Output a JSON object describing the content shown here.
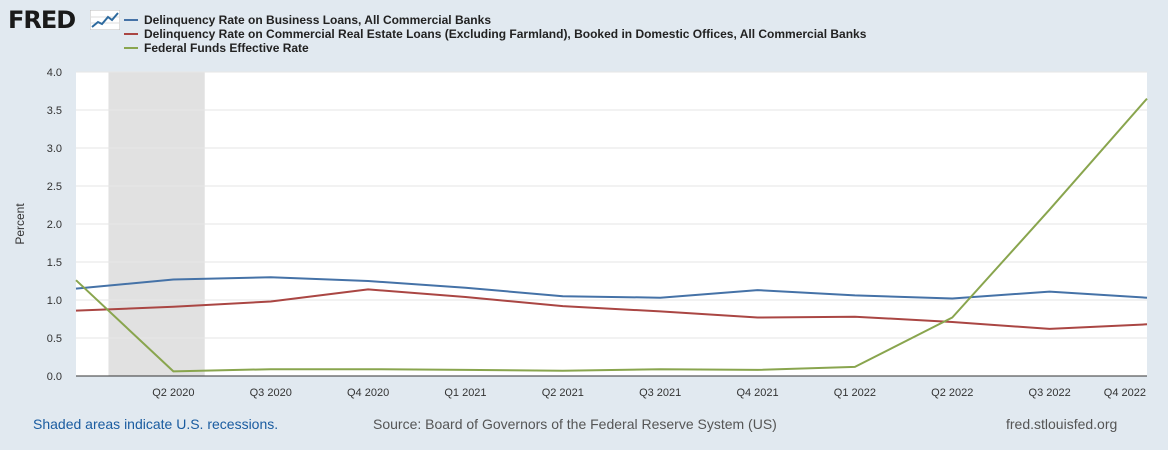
{
  "logo": {
    "text": "FRED"
  },
  "colors": {
    "series1": "#4572a7",
    "series2": "#aa4643",
    "series3": "#89a54e",
    "recession": "#e1e1e1"
  },
  "chart_data": {
    "type": "line",
    "ylabel": "Percent",
    "ylim": [
      0,
      4.0
    ],
    "yticks": [
      "0.0",
      "0.5",
      "1.0",
      "1.5",
      "2.0",
      "2.5",
      "3.0",
      "3.5",
      "4.0"
    ],
    "x": [
      "Q1 2020",
      "Q2 2020",
      "Q3 2020",
      "Q4 2020",
      "Q1 2021",
      "Q2 2021",
      "Q3 2021",
      "Q4 2021",
      "Q1 2022",
      "Q2 2022",
      "Q3 2022",
      "Q4 2022"
    ],
    "xtick_labels": [
      "Q2 2020",
      "Q3 2020",
      "Q4 2020",
      "Q1 2021",
      "Q2 2021",
      "Q3 2021",
      "Q4 2021",
      "Q1 2022",
      "Q2 2022",
      "Q3 2022",
      "Q4 2022"
    ],
    "recession": {
      "start": "2020-02-01",
      "end": "2020-04-30"
    },
    "series": [
      {
        "name": "Delinquency Rate on Business Loans, All Commercial Banks",
        "values": [
          1.15,
          1.27,
          1.3,
          1.25,
          1.16,
          1.05,
          1.03,
          1.13,
          1.06,
          1.02,
          1.11,
          1.03
        ]
      },
      {
        "name": "Delinquency Rate on Commercial Real Estate Loans (Excluding Farmland), Booked in Domestic Offices, All Commercial Banks",
        "values": [
          0.86,
          0.91,
          0.98,
          1.14,
          1.04,
          0.92,
          0.85,
          0.77,
          0.78,
          0.71,
          0.62,
          0.68
        ]
      },
      {
        "name": "Federal Funds Effective Rate",
        "values": [
          1.26,
          0.06,
          0.09,
          0.09,
          0.08,
          0.07,
          0.09,
          0.08,
          0.12,
          0.77,
          2.19,
          3.65
        ]
      }
    ]
  },
  "footer": {
    "note": "Shaded areas indicate U.S. recessions.",
    "source": "Source: Board of Governors of the Federal Reserve System (US)",
    "site": "fred.stlouisfed.org"
  }
}
